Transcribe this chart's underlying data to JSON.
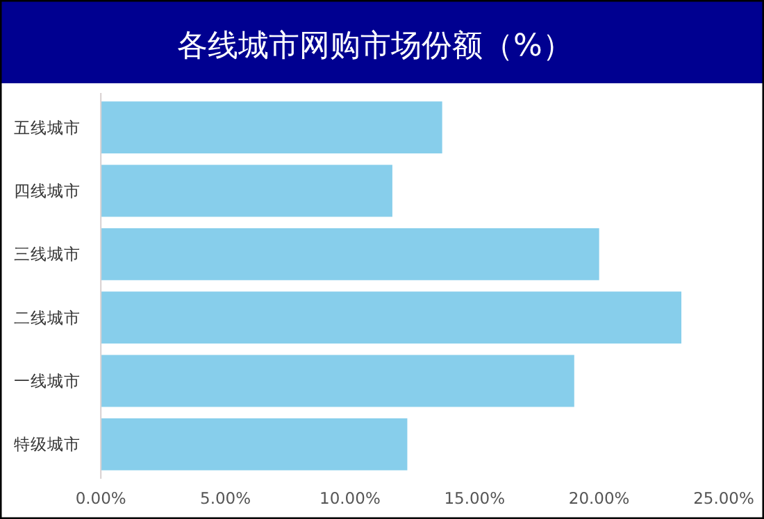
{
  "chart_data": {
    "type": "bar",
    "orientation": "horizontal",
    "title": "各线城市网购市场份额（%）",
    "categories": [
      "五线城市",
      "四线城市",
      "三线城市",
      "二线城市",
      "一线城市",
      "特级城市"
    ],
    "values": [
      13.7,
      11.7,
      20.0,
      23.3,
      19.0,
      12.3
    ],
    "color": "#87ceeb",
    "xlim": [
      0,
      25
    ],
    "xticks": [
      {
        "value": 0,
        "label": "0.00%"
      },
      {
        "value": 5,
        "label": "5.00%"
      },
      {
        "value": 10,
        "label": "10.00%"
      },
      {
        "value": 15,
        "label": "15.00%"
      },
      {
        "value": 20,
        "label": "20.00%"
      },
      {
        "value": 25,
        "label": "25.00%"
      }
    ]
  }
}
